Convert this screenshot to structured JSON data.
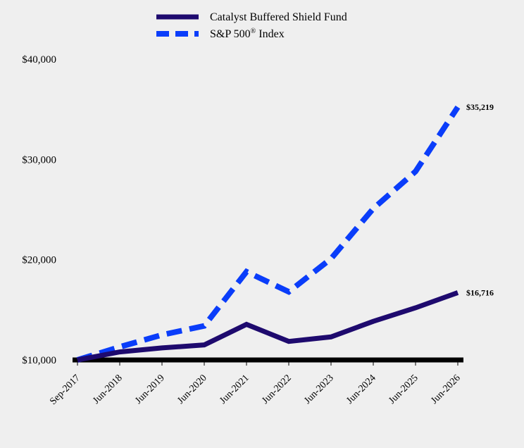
{
  "chart_data": {
    "type": "line",
    "title": "",
    "xlabel": "",
    "ylabel": "",
    "categories": [
      "Sep-2017",
      "Jun-2018",
      "Jun-2019",
      "Jun-2020",
      "Jun-2021",
      "Jun-2022",
      "Jun-2023",
      "Jun-2024",
      "Jun-2025",
      "Jun-2026"
    ],
    "series": [
      {
        "name": "Catalyst Buffered Shield Fund",
        "color": "#1e0a6e",
        "style": "solid",
        "values": [
          10000,
          10800,
          11200,
          11500,
          13550,
          11850,
          12300,
          13850,
          15200,
          16716
        ],
        "end_label": "$16,716"
      },
      {
        "name": "S&P 500",
        "name_superscript": "®",
        "name_suffix": " Index",
        "color": "#0a3dfa",
        "style": "dashed",
        "values": [
          10000,
          11300,
          12500,
          13400,
          18800,
          16800,
          20100,
          25100,
          28800,
          35219
        ],
        "end_label": "$35,219"
      }
    ],
    "ylim": [
      10000,
      40000
    ],
    "yticks": [
      10000,
      20000,
      30000,
      40000
    ],
    "ytick_labels": [
      "$10,000",
      "$20,000",
      "$30,000",
      "$40,000"
    ],
    "grid": false,
    "legend_position": "top"
  }
}
